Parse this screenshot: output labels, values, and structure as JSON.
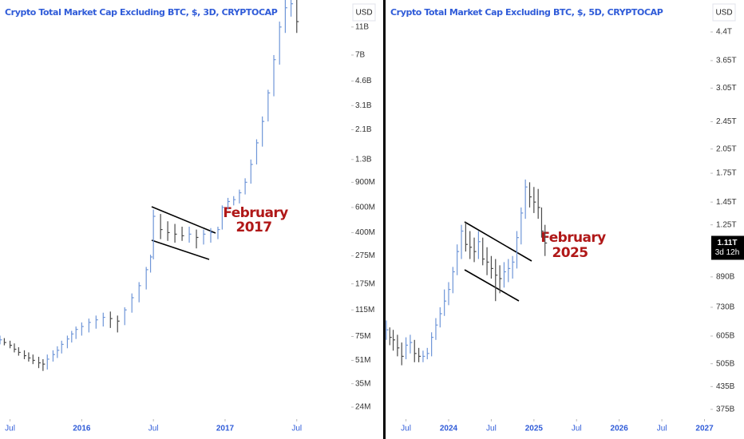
{
  "chart_data": [
    {
      "type": "ohlc",
      "title": "Crypto Total Market Cap Excluding BTC, $, 3D, CRYPTOCAP",
      "currency": "USD",
      "annotation": [
        "February",
        "2017"
      ],
      "up_color": "#6f96d8",
      "down_color": "#4a4a4a",
      "log_scale": true,
      "xlim": [
        2015.43,
        2017.88
      ],
      "ylim": [
        19800000.0,
        17000000000.0
      ],
      "xticks": [
        {
          "value": 2015.5,
          "label": "Jul"
        },
        2016,
        {
          "value": 2016.5,
          "label": "Jul"
        },
        2017,
        {
          "value": 2017.5,
          "label": "Jul"
        }
      ],
      "yticks": [
        {
          "value": 11000000000.0,
          "label": "11B"
        },
        {
          "value": 7000000000.0,
          "label": "7B"
        },
        {
          "value": 4600000000.0,
          "label": "4.6B"
        },
        {
          "value": 3100000000.0,
          "label": "3.1B"
        },
        {
          "value": 2100000000.0,
          "label": "2.1B"
        },
        {
          "value": 1300000000.0,
          "label": "1.3B"
        },
        {
          "value": 900000000.0,
          "label": "900M"
        },
        {
          "value": 600000000.0,
          "label": "600M"
        },
        {
          "value": 400000000.0,
          "label": "400M"
        },
        {
          "value": 275000000.0,
          "label": "275M"
        },
        {
          "value": 175000000.0,
          "label": "175M"
        },
        {
          "value": 115000000.0,
          "label": "115M"
        },
        {
          "value": 75000000.0,
          "label": "75M"
        },
        {
          "value": 51000000.0,
          "label": "51M"
        },
        {
          "value": 35000000.0,
          "label": "35M"
        },
        {
          "value": 24000000.0,
          "label": "24M"
        }
      ],
      "x": [
        2015.43,
        2015.46,
        2015.5,
        2015.53,
        2015.56,
        2015.6,
        2015.63,
        2015.66,
        2015.7,
        2015.73,
        2015.76,
        2015.8,
        2015.83,
        2015.86,
        2015.9,
        2015.93,
        2015.96,
        2016.0,
        2016.05,
        2016.1,
        2016.15,
        2016.2,
        2016.25,
        2016.3,
        2016.35,
        2016.4,
        2016.45,
        2016.48,
        2016.5,
        2016.55,
        2016.6,
        2016.65,
        2016.7,
        2016.75,
        2016.8,
        2016.85,
        2016.9,
        2016.95,
        2016.98,
        2017.02,
        2017.06,
        2017.1,
        2017.14,
        2017.18,
        2017.22,
        2017.26,
        2017.3,
        2017.34,
        2017.38,
        2017.42,
        2017.46,
        2017.5
      ],
      "low": [
        66000000.0,
        65000000.0,
        62000000.0,
        58000000.0,
        55000000.0,
        52000000.0,
        50000000.0,
        48000000.0,
        45000000.0,
        43000000.0,
        44000000.0,
        50000000.0,
        53000000.0,
        57000000.0,
        62000000.0,
        68000000.0,
        72000000.0,
        76000000.0,
        80000000.0,
        85000000.0,
        88000000.0,
        86000000.0,
        80000000.0,
        90000000.0,
        110000000.0,
        130000000.0,
        160000000.0,
        210000000.0,
        260000000.0,
        360000000.0,
        350000000.0,
        340000000.0,
        350000000.0,
        340000000.0,
        310000000.0,
        330000000.0,
        340000000.0,
        360000000.0,
        420000000.0,
        580000000.0,
        620000000.0,
        640000000.0,
        740000000.0,
        880000000.0,
        1200000000.0,
        1600000000.0,
        2400000000.0,
        3600000000.0,
        6000000000.0,
        10000000000.0,
        13000000000.0,
        10000000000.0
      ],
      "high": [
        76000000.0,
        73000000.0,
        70000000.0,
        67000000.0,
        63000000.0,
        60000000.0,
        58000000.0,
        56000000.0,
        54000000.0,
        52000000.0,
        56000000.0,
        60000000.0,
        64000000.0,
        70000000.0,
        76000000.0,
        82000000.0,
        88000000.0,
        94000000.0,
        100000000.0,
        105000000.0,
        110000000.0,
        112000000.0,
        105000000.0,
        120000000.0,
        150000000.0,
        180000000.0,
        230000000.0,
        280000000.0,
        580000000.0,
        540000000.0,
        480000000.0,
        460000000.0,
        440000000.0,
        440000000.0,
        420000000.0,
        420000000.0,
        430000000.0,
        440000000.0,
        620000000.0,
        700000000.0,
        720000000.0,
        800000000.0,
        960000000.0,
        1300000000.0,
        1800000000.0,
        2600000000.0,
        4000000000.0,
        7000000000.0,
        12000000000.0,
        17000000000.0,
        17000000000.0,
        17000000000.0
      ],
      "close": [
        71000000.0,
        68000000.0,
        65000000.0,
        61000000.0,
        58000000.0,
        55000000.0,
        53000000.0,
        51000000.0,
        49000000.0,
        48000000.0,
        52000000.0,
        56000000.0,
        60000000.0,
        66000000.0,
        72000000.0,
        78000000.0,
        84000000.0,
        88000000.0,
        94000000.0,
        98000000.0,
        102000000.0,
        100000000.0,
        96000000.0,
        115000000.0,
        140000000.0,
        170000000.0,
        220000000.0,
        270000000.0,
        520000000.0,
        420000000.0,
        400000000.0,
        390000000.0,
        380000000.0,
        390000000.0,
        370000000.0,
        390000000.0,
        400000000.0,
        420000000.0,
        600000000.0,
        660000000.0,
        680000000.0,
        760000000.0,
        900000000.0,
        1200000000.0,
        1700000000.0,
        2400000000.0,
        3800000000.0,
        6500000000.0,
        11000000000.0,
        15000000000.0,
        16000000000.0,
        12000000000.0
      ]
    },
    {
      "type": "ohlc",
      "title": "Crypto Total Market Cap Excluding BTC, $, 5D, CRYPTOCAP",
      "currency": "USD",
      "annotation": [
        "February",
        "2025"
      ],
      "price_tag": "1.11T",
      "countdown": "3d 12h",
      "up_color": "#6f96d8",
      "down_color": "#4a4a4a",
      "log_scale": true,
      "xlim": [
        2023.27,
        2027.07
      ],
      "ylim": [
        352000000000.0,
        5420000000000.0
      ],
      "xticks": [
        {
          "value": 2023.5,
          "label": "Jul"
        },
        2024,
        {
          "value": 2024.5,
          "label": "Jul"
        },
        2025,
        {
          "value": 2025.5,
          "label": "Jul"
        },
        2026,
        {
          "value": 2026.5,
          "label": "Jul"
        },
        2027
      ],
      "yticks": [
        {
          "value": 4400000000000.0,
          "label": "4.4T"
        },
        {
          "value": 3650000000000.0,
          "label": "3.65T"
        },
        {
          "value": 3050000000000.0,
          "label": "3.05T"
        },
        {
          "value": 2450000000000.0,
          "label": "2.45T"
        },
        {
          "value": 2050000000000.0,
          "label": "2.05T"
        },
        {
          "value": 1750000000000.0,
          "label": "1.75T"
        },
        {
          "value": 1450000000000.0,
          "label": "1.45T"
        },
        {
          "value": 1250000000000.0,
          "label": "1.25T"
        },
        {
          "value": 890000000000.0,
          "label": "890B"
        },
        {
          "value": 730000000000.0,
          "label": "730B"
        },
        {
          "value": 605000000000.0,
          "label": "605B"
        },
        {
          "value": 505000000000.0,
          "label": "505B"
        },
        {
          "value": 435000000000.0,
          "label": "435B"
        },
        {
          "value": 375000000000.0,
          "label": "375B"
        }
      ],
      "x": [
        2023.27,
        2023.31,
        2023.35,
        2023.4,
        2023.45,
        2023.5,
        2023.55,
        2023.6,
        2023.65,
        2023.7,
        2023.75,
        2023.8,
        2023.85,
        2023.9,
        2023.95,
        2024.0,
        2024.05,
        2024.1,
        2024.15,
        2024.2,
        2024.25,
        2024.3,
        2024.35,
        2024.4,
        2024.45,
        2024.5,
        2024.55,
        2024.6,
        2024.65,
        2024.7,
        2024.75,
        2024.8,
        2024.85,
        2024.9,
        2024.95,
        2025.0,
        2025.05,
        2025.09,
        2025.13
      ],
      "low": [
        590000000000.0,
        570000000000.0,
        550000000000.0,
        530000000000.0,
        500000000000.0,
        520000000000.0,
        540000000000.0,
        510000000000.0,
        510000000000.0,
        510000000000.0,
        520000000000.0,
        530000000000.0,
        590000000000.0,
        640000000000.0,
        690000000000.0,
        740000000000.0,
        800000000000.0,
        900000000000.0,
        1000000000000.0,
        1050000000000.0,
        1000000000000.0,
        980000000000.0,
        1000000000000.0,
        960000000000.0,
        900000000000.0,
        880000000000.0,
        760000000000.0,
        800000000000.0,
        830000000000.0,
        860000000000.0,
        880000000000.0,
        940000000000.0,
        1100000000000.0,
        1300000000000.0,
        1400000000000.0,
        1350000000000.0,
        1300000000000.0,
        1150000000000.0,
        1020000000000.0
      ],
      "high": [
        670000000000.0,
        640000000000.0,
        630000000000.0,
        610000000000.0,
        580000000000.0,
        600000000000.0,
        610000000000.0,
        590000000000.0,
        560000000000.0,
        550000000000.0,
        560000000000.0,
        620000000000.0,
        680000000000.0,
        730000000000.0,
        820000000000.0,
        860000000000.0,
        950000000000.0,
        1100000000000.0,
        1250000000000.0,
        1270000000000.0,
        1200000000000.0,
        1150000000000.0,
        1200000000000.0,
        1150000000000.0,
        1080000000000.0,
        1020000000000.0,
        1000000000000.0,
        960000000000.0,
        980000000000.0,
        1000000000000.0,
        1020000000000.0,
        1200000000000.0,
        1400000000000.0,
        1680000000000.0,
        1650000000000.0,
        1600000000000.0,
        1580000000000.0,
        1400000000000.0,
        1250000000000.0
      ],
      "close": [
        630000000000.0,
        600000000000.0,
        590000000000.0,
        560000000000.0,
        530000000000.0,
        570000000000.0,
        580000000000.0,
        540000000000.0,
        530000000000.0,
        530000000000.0,
        540000000000.0,
        600000000000.0,
        650000000000.0,
        700000000000.0,
        760000000000.0,
        820000000000.0,
        920000000000.0,
        1050000000000.0,
        1200000000000.0,
        1100000000000.0,
        1080000000000.0,
        1050000000000.0,
        1120000000000.0,
        1000000000000.0,
        980000000000.0,
        940000000000.0,
        900000000000.0,
        880000000000.0,
        920000000000.0,
        940000000000.0,
        980000000000.0,
        1150000000000.0,
        1350000000000.0,
        1600000000000.0,
        1500000000000.0,
        1450000000000.0,
        1400000000000.0,
        1200000000000.0,
        1110000000000.0
      ]
    }
  ]
}
